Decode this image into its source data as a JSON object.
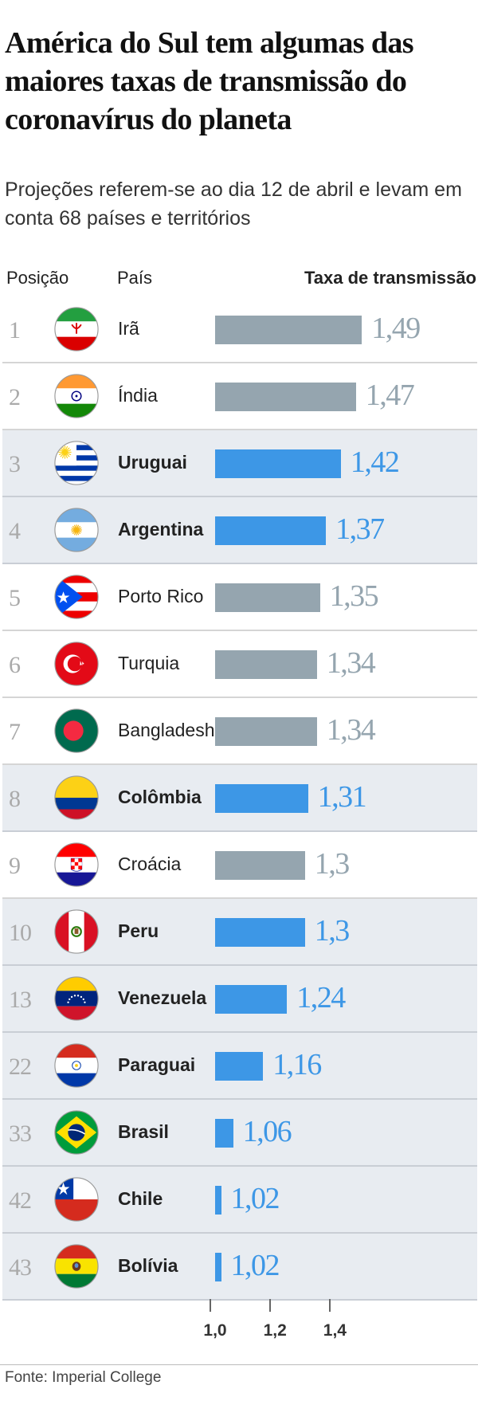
{
  "header": {
    "title": "América do Sul tem algumas das maiores taxas de transmissão do coronavírus do planeta",
    "subtitle": "Projeções referem-se ao dia 12 de abril e levam em conta 68 países e territórios"
  },
  "columns": {
    "rank": "Posição",
    "country": "País",
    "rate": "Taxa de transmissão"
  },
  "colors": {
    "highlight": "#3d97e6",
    "other": "#95a5af",
    "highlight_row_bg": "#e8ecf1"
  },
  "chart_data": {
    "type": "bar",
    "orientation": "horizontal",
    "xlim": [
      1.0,
      1.6
    ],
    "xticks": [
      1.0,
      1.2,
      1.4
    ],
    "xtick_labels": [
      "1,0",
      "1,2",
      "1,4"
    ],
    "rows": [
      {
        "rank": "1",
        "country": "Irã",
        "value": 1.49,
        "label": "1,49",
        "highlight": false,
        "flag": "iran-flag-icon"
      },
      {
        "rank": "2",
        "country": "Índia",
        "value": 1.47,
        "label": "1,47",
        "highlight": false,
        "flag": "india-flag-icon"
      },
      {
        "rank": "3",
        "country": "Uruguai",
        "value": 1.42,
        "label": "1,42",
        "highlight": true,
        "flag": "uruguay-flag-icon"
      },
      {
        "rank": "4",
        "country": "Argentina",
        "value": 1.37,
        "label": "1,37",
        "highlight": true,
        "flag": "argentina-flag-icon"
      },
      {
        "rank": "5",
        "country": "Porto Rico",
        "value": 1.35,
        "label": "1,35",
        "highlight": false,
        "flag": "puerto-rico-flag-icon"
      },
      {
        "rank": "6",
        "country": "Turquia",
        "value": 1.34,
        "label": "1,34",
        "highlight": false,
        "flag": "turkey-flag-icon"
      },
      {
        "rank": "7",
        "country": "Bangladesh",
        "value": 1.34,
        "label": "1,34",
        "highlight": false,
        "flag": "bangladesh-flag-icon"
      },
      {
        "rank": "8",
        "country": "Colômbia",
        "value": 1.31,
        "label": "1,31",
        "highlight": true,
        "flag": "colombia-flag-icon"
      },
      {
        "rank": "9",
        "country": "Croácia",
        "value": 1.3,
        "label": "1,3",
        "highlight": false,
        "flag": "croatia-flag-icon"
      },
      {
        "rank": "10",
        "country": "Peru",
        "value": 1.3,
        "label": "1,3",
        "highlight": true,
        "flag": "peru-flag-icon"
      },
      {
        "rank": "13",
        "country": "Venezuela",
        "value": 1.24,
        "label": "1,24",
        "highlight": true,
        "flag": "venezuela-flag-icon"
      },
      {
        "rank": "22",
        "country": "Paraguai",
        "value": 1.16,
        "label": "1,16",
        "highlight": true,
        "flag": "paraguay-flag-icon"
      },
      {
        "rank": "33",
        "country": "Brasil",
        "value": 1.06,
        "label": "1,06",
        "highlight": true,
        "flag": "brazil-flag-icon"
      },
      {
        "rank": "42",
        "country": "Chile",
        "value": 1.02,
        "label": "1,02",
        "highlight": true,
        "flag": "chile-flag-icon"
      },
      {
        "rank": "43",
        "country": "Bolívia",
        "value": 1.02,
        "label": "1,02",
        "highlight": true,
        "flag": "bolivia-flag-icon"
      }
    ]
  },
  "footer": {
    "source": "Fonte: Imperial College"
  }
}
